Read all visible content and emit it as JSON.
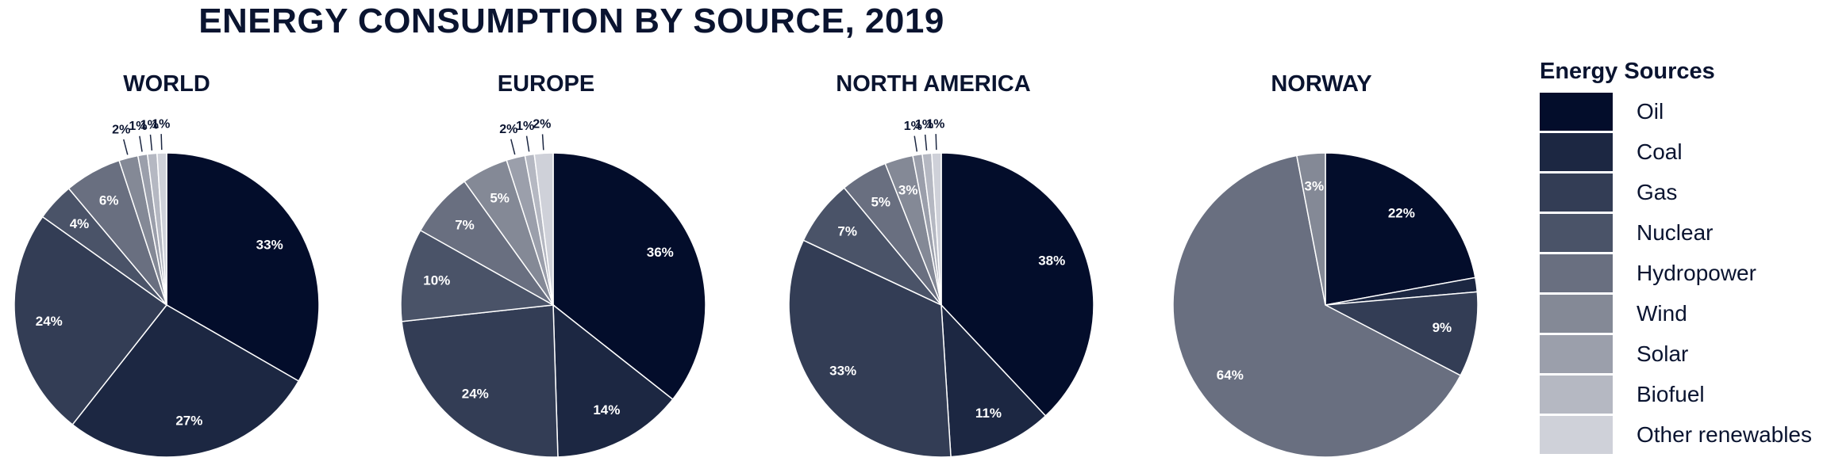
{
  "chart_data": {
    "type": "pie",
    "title": "ENERGY CONSUMPTION BY SOURCE, 2019",
    "legend": {
      "title": "Energy Sources",
      "position": "right",
      "items": [
        "Oil",
        "Coal",
        "Gas",
        "Nuclear",
        "Hydropower",
        "Wind",
        "Solar",
        "Biofuel",
        "Other renewables"
      ]
    },
    "colors": [
      "#030d2b",
      "#1c2742",
      "#333d55",
      "#4a5368",
      "#696f80",
      "#848996",
      "#9b9fab",
      "#b5b8c2",
      "#cfd1d9"
    ],
    "pies": [
      {
        "name": "WORLD",
        "values": [
          33,
          27,
          24,
          4,
          6,
          2,
          1,
          1,
          1
        ],
        "labels": [
          "33%",
          "27%",
          "24%",
          "4%",
          "6%",
          "2%",
          "1%",
          "1%",
          "1%"
        ]
      },
      {
        "name": "EUROPE",
        "values": [
          36,
          14,
          24,
          10,
          7,
          5,
          2,
          1,
          2
        ],
        "labels": [
          "36%",
          "14%",
          "24%",
          "10%",
          "7%",
          "5%",
          "2%",
          "1%",
          "2%"
        ]
      },
      {
        "name": "NORTH AMERICA",
        "values": [
          38,
          11,
          33,
          7,
          5,
          3,
          1,
          1,
          1
        ],
        "labels": [
          "38%",
          "11%",
          "33%",
          "7%",
          "5%",
          "3%",
          "1%",
          "1%",
          "1%"
        ]
      },
      {
        "name": "NORWAY",
        "values": [
          22,
          1.5,
          9,
          0,
          64,
          3,
          0,
          0,
          0
        ],
        "labels": [
          "22%",
          "",
          "9%",
          "",
          "64%",
          "3%",
          "",
          "",
          ""
        ]
      }
    ]
  }
}
